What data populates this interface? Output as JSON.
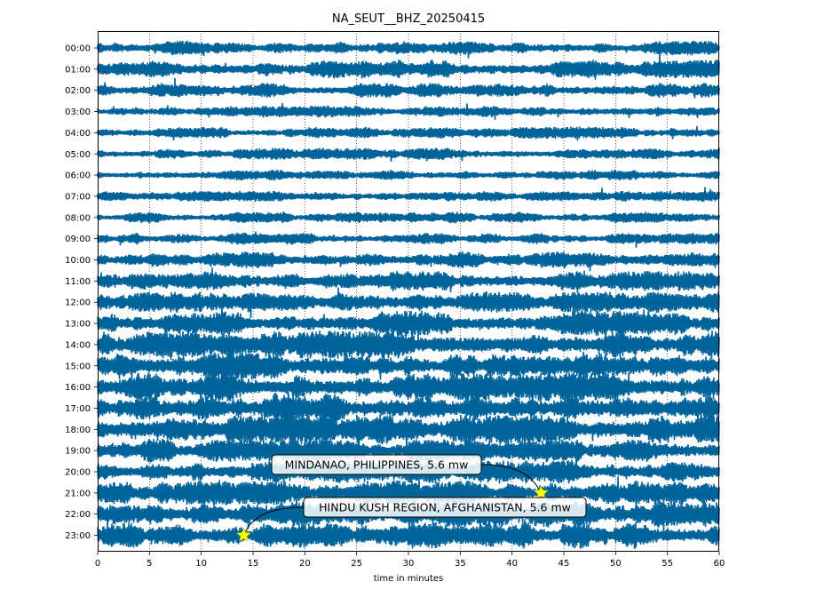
{
  "chart_data": {
    "type": "line",
    "title": "NA_SEUT__BHZ_20250415",
    "xlabel": "time in minutes",
    "ylabel": "",
    "xlim": [
      0,
      60
    ],
    "x_ticks": [
      0,
      5,
      10,
      15,
      20,
      25,
      30,
      35,
      40,
      45,
      50,
      55,
      60
    ],
    "grid": "vertical dotted lines at x ticks",
    "trace_color": "#00639a",
    "rows": [
      {
        "label": "00:00",
        "amplitude": 0.22
      },
      {
        "label": "01:00",
        "amplitude": 0.28
      },
      {
        "label": "02:00",
        "amplitude": 0.22
      },
      {
        "label": "03:00",
        "amplitude": 0.18
      },
      {
        "label": "04:00",
        "amplitude": 0.18
      },
      {
        "label": "05:00",
        "amplitude": 0.18
      },
      {
        "label": "06:00",
        "amplitude": 0.16
      },
      {
        "label": "07:00",
        "amplitude": 0.16
      },
      {
        "label": "08:00",
        "amplitude": 0.17
      },
      {
        "label": "09:00",
        "amplitude": 0.18
      },
      {
        "label": "10:00",
        "amplitude": 0.25
      },
      {
        "label": "11:00",
        "amplitude": 0.3
      },
      {
        "label": "12:00",
        "amplitude": 0.32
      },
      {
        "label": "13:00",
        "amplitude": 0.38
      },
      {
        "label": "14:00",
        "amplitude": 0.42
      },
      {
        "label": "15:00",
        "amplitude": 0.42
      },
      {
        "label": "16:00",
        "amplitude": 0.45
      },
      {
        "label": "17:00",
        "amplitude": 0.45
      },
      {
        "label": "18:00",
        "amplitude": 0.45
      },
      {
        "label": "19:00",
        "amplitude": 0.35
      },
      {
        "label": "20:00",
        "amplitude": 0.35
      },
      {
        "label": "21:00",
        "amplitude": 0.38
      },
      {
        "label": "22:00",
        "amplitude": 0.4
      },
      {
        "label": "23:00",
        "amplitude": 0.4
      }
    ],
    "events": [
      {
        "label": "MINDANAO, PHILIPPINES, 5.6 mw",
        "row": "21:00",
        "minute": 42.8
      },
      {
        "label": "HINDU KUSH REGION, AFGHANISTAN, 5.6 mw",
        "row": "23:00",
        "minute": 14.1
      }
    ],
    "marker_color": "#ffff00"
  }
}
